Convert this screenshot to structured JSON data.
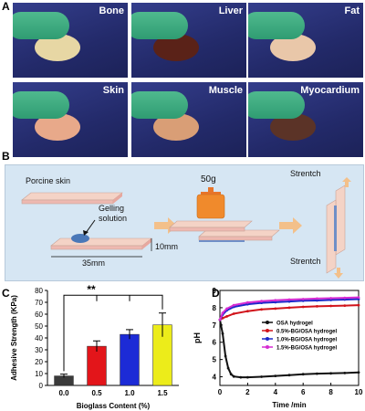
{
  "panels": {
    "A": {
      "letter": "A",
      "photos": [
        {
          "label": "Bone",
          "tissue_color": "#e7d7a4"
        },
        {
          "label": "Liver",
          "tissue_color": "#5a2218"
        },
        {
          "label": "Fat",
          "tissue_color": "#e9c7a9"
        },
        {
          "label": "Skin",
          "tissue_color": "#e8a98a"
        },
        {
          "label": "Muscle",
          "tissue_color": "#d99e76"
        },
        {
          "label": "Myocardium",
          "tissue_color": "#5b3327"
        }
      ]
    },
    "B": {
      "letter": "B",
      "porcine_skin": "Porcine skin",
      "gelling_solution_line1": "Gelling",
      "gelling_solution_line2": "solution",
      "weight": "50g",
      "length_label": "35mm",
      "width_label": "10mm",
      "stretch_top": "Strentch",
      "stretch_bottom": "Strentch"
    },
    "C": {
      "letter": "C"
    },
    "D": {
      "letter": "D"
    }
  },
  "chart_data": [
    {
      "type": "bar",
      "panel": "C",
      "categories": [
        "0.0",
        "0.5",
        "1.0",
        "1.5"
      ],
      "values": [
        8,
        33,
        43,
        51
      ],
      "errors": [
        1.5,
        4.5,
        4,
        10
      ],
      "colors": [
        "#3a3a3a",
        "#e3151a",
        "#1c2bd6",
        "#ecec1a"
      ],
      "xlabel": "Bioglass Content (%)",
      "ylabel": "Adhesive Strength (KPa)",
      "ylim": [
        0,
        80
      ],
      "yticks": [
        0,
        10,
        20,
        30,
        40,
        50,
        60,
        70,
        80
      ],
      "significance": "**",
      "grid": false
    },
    {
      "type": "line",
      "panel": "D",
      "xlabel": "Time /min",
      "ylabel": "pH",
      "xlim": [
        0,
        10
      ],
      "ylim": [
        3.5,
        9
      ],
      "xticks": [
        0,
        2,
        4,
        6,
        8,
        10
      ],
      "yticks": [
        4,
        5,
        6,
        7,
        8,
        9
      ],
      "legend_position": "middle-right",
      "series": [
        {
          "name": "OSA hydrogel",
          "color": "#111111",
          "x": [
            0,
            0.2,
            0.4,
            0.6,
            0.8,
            1.0,
            1.5,
            2,
            3,
            4,
            5,
            6,
            7,
            8,
            9,
            10
          ],
          "y": [
            7.3,
            6.5,
            5.2,
            4.5,
            4.15,
            4.02,
            3.97,
            3.97,
            4.0,
            4.05,
            4.1,
            4.15,
            4.18,
            4.2,
            4.22,
            4.25
          ]
        },
        {
          "name": "0.5%-BG/OSA hydrogel",
          "color": "#d1141b",
          "x": [
            0,
            0.2,
            0.5,
            1,
            2,
            3,
            4,
            5,
            6,
            7,
            8,
            9,
            10
          ],
          "y": [
            7.3,
            7.4,
            7.5,
            7.65,
            7.8,
            7.9,
            7.95,
            8.0,
            8.05,
            8.08,
            8.1,
            8.12,
            8.15
          ]
        },
        {
          "name": "1.0%-BG/OSA hydrogel",
          "color": "#1a27c9",
          "x": [
            0,
            0.2,
            0.5,
            1,
            2,
            3,
            4,
            5,
            6,
            7,
            8,
            9,
            10
          ],
          "y": [
            7.3,
            7.6,
            7.85,
            8.05,
            8.2,
            8.28,
            8.32,
            8.36,
            8.4,
            8.42,
            8.45,
            8.47,
            8.5
          ]
        },
        {
          "name": "1.5%-BG/OSA hydrogel",
          "color": "#d62bd2",
          "x": [
            0,
            0.2,
            0.5,
            1,
            2,
            3,
            4,
            5,
            6,
            7,
            8,
            9,
            10
          ],
          "y": [
            7.3,
            7.7,
            7.95,
            8.15,
            8.3,
            8.38,
            8.43,
            8.47,
            8.5,
            8.53,
            8.55,
            8.57,
            8.6
          ]
        }
      ]
    }
  ]
}
